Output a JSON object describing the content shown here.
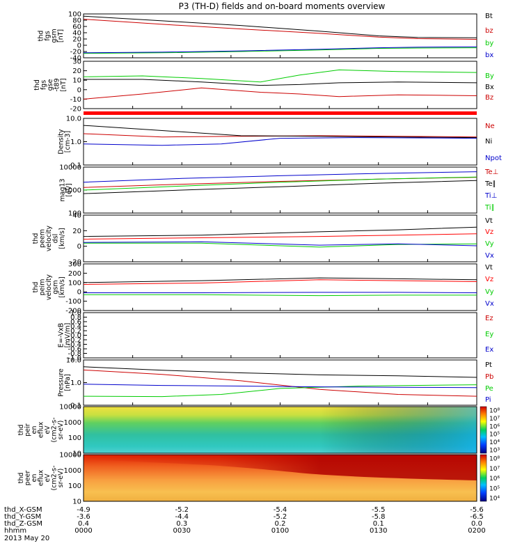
{
  "title": "P3 (TH-D) fields and on-board moments overview",
  "date_label": "2013 May 20",
  "axis_rows": [
    {
      "label": "thd_X-GSM",
      "values": [
        "-4.9",
        "-5.2",
        "-5.4",
        "-5.5",
        "-5.6"
      ]
    },
    {
      "label": "thd_Y-GSM",
      "values": [
        "-3.6",
        "-4.4",
        "-5.2",
        "-5.8",
        "-6.5"
      ]
    },
    {
      "label": "thd_Z-GSM",
      "values": [
        "0.4",
        "0.3",
        "0.2",
        "0.1",
        "0.0"
      ]
    },
    {
      "label": "hhmm",
      "values": [
        "0000",
        "0030",
        "0100",
        "0130",
        "0200"
      ]
    }
  ],
  "chart_data": [
    {
      "type": "line",
      "ylabel": [
        "thd",
        "fgs",
        "gsm",
        "[nT]"
      ],
      "ylim": [
        -40,
        100
      ],
      "yticks": [
        "100",
        "80",
        "60",
        "40",
        "20",
        "0",
        "-20",
        "-40"
      ],
      "series": [
        {
          "name": "Bt",
          "color": "#000000",
          "x": [
            0,
            0.2,
            0.4,
            0.6,
            0.75,
            0.85,
            1
          ],
          "y": [
            93,
            78,
            63,
            45,
            30,
            25,
            24
          ]
        },
        {
          "name": "bz",
          "color": "#cc0000",
          "x": [
            0,
            0.2,
            0.4,
            0.6,
            0.75,
            0.85,
            1
          ],
          "y": [
            83,
            67,
            52,
            38,
            26,
            21,
            19
          ]
        },
        {
          "name": "by",
          "color": "#00cc00",
          "x": [
            0,
            0.2,
            0.4,
            0.6,
            0.75,
            0.85,
            1
          ],
          "y": [
            -26,
            -24,
            -20,
            -15,
            -10,
            -9,
            -8
          ]
        },
        {
          "name": "bx",
          "color": "#0000cc",
          "x": [
            0,
            0.2,
            0.4,
            0.6,
            0.75,
            0.85,
            1
          ],
          "y": [
            -24,
            -22,
            -18,
            -13,
            -8,
            -6,
            -5
          ]
        }
      ]
    },
    {
      "type": "line",
      "ylabel": [
        "thd",
        "fgs",
        "gse",
        "-t89",
        "[nT]"
      ],
      "ylim": [
        -25,
        30
      ],
      "yticks": [
        "30",
        "20",
        "10",
        "0",
        "-10",
        "-20"
      ],
      "series": [
        {
          "name": "By",
          "color": "#00cc00",
          "x": [
            0,
            0.15,
            0.3,
            0.45,
            0.55,
            0.65,
            0.8,
            1
          ],
          "y": [
            12,
            13,
            10,
            6,
            14,
            20,
            18,
            17
          ]
        },
        {
          "name": "Bx",
          "color": "#000000",
          "x": [
            0,
            0.15,
            0.3,
            0.45,
            0.55,
            0.65,
            0.8,
            1
          ],
          "y": [
            9,
            9,
            6,
            2,
            3,
            5,
            6,
            5
          ]
        },
        {
          "name": "Bz",
          "color": "#cc0000",
          "x": [
            0,
            0.15,
            0.3,
            0.45,
            0.55,
            0.65,
            0.8,
            1
          ],
          "y": [
            -14,
            -8,
            -1,
            -6,
            -8,
            -11,
            -9,
            -10
          ]
        }
      ]
    },
    {
      "type": "line",
      "ylabel": [
        "Density",
        "[cm-3]"
      ],
      "ylim": [
        0.1,
        10
      ],
      "yscale": "log",
      "yticks": [
        "10.0",
        "1.0",
        "0.1"
      ],
      "series": [
        {
          "name": "Ne",
          "color": "#cc0000",
          "x": [
            0,
            0.2,
            0.4,
            0.6,
            0.8,
            1
          ],
          "y": [
            2.2,
            1.6,
            1.7,
            1.8,
            1.7,
            1.6
          ]
        },
        {
          "name": "Ni",
          "color": "#000000",
          "x": [
            0,
            0.2,
            0.4,
            0.6,
            0.8,
            1
          ],
          "y": [
            5.0,
            3.0,
            1.8,
            1.7,
            1.6,
            1.5
          ]
        },
        {
          "name": "Npot",
          "color": "#0000cc",
          "x": [
            0,
            0.2,
            0.35,
            0.5,
            0.7,
            1
          ],
          "y": [
            0.8,
            0.7,
            0.8,
            1.4,
            1.5,
            1.4
          ]
        }
      ]
    },
    {
      "type": "line",
      "ylabel": [
        "mag13",
        "[eV]"
      ],
      "ylim": [
        100,
        10000
      ],
      "yscale": "log",
      "yticks": [
        "10000",
        "1000",
        "100"
      ],
      "series": [
        {
          "name": "Te⊥",
          "color": "#cc0000",
          "x": [
            0,
            0.25,
            0.5,
            0.75,
            1
          ],
          "y": [
            1300,
            1800,
            2400,
            3000,
            3600
          ]
        },
        {
          "name": "Te∥",
          "color": "#000000",
          "x": [
            0,
            0.25,
            0.5,
            0.75,
            1
          ],
          "y": [
            700,
            1000,
            1400,
            2000,
            2600
          ]
        },
        {
          "name": "Ti⊥",
          "color": "#0000cc",
          "x": [
            0,
            0.25,
            0.5,
            0.75,
            1
          ],
          "y": [
            2200,
            3200,
            4200,
            5300,
            6300
          ]
        },
        {
          "name": "Ti∥",
          "color": "#00cc00",
          "x": [
            0,
            0.25,
            0.5,
            0.75,
            1
          ],
          "y": [
            1000,
            1500,
            2200,
            3000,
            3700
          ]
        }
      ]
    },
    {
      "type": "line",
      "ylabel": [
        "thd",
        "peem",
        "velocity",
        "dsl",
        "[km/s]"
      ],
      "ylim": [
        -30,
        40
      ],
      "yticks": [
        "40",
        "20",
        "0",
        "-20"
      ],
      "series": [
        {
          "name": "Vt",
          "color": "#000000",
          "x": [
            0,
            0.3,
            0.6,
            0.8,
            1
          ],
          "y": [
            8,
            10,
            15,
            18,
            22
          ]
        },
        {
          "name": "Vz",
          "color": "#ff0000",
          "x": [
            0,
            0.3,
            0.6,
            0.8,
            1
          ],
          "y": [
            4,
            6,
            8,
            10,
            12
          ]
        },
        {
          "name": "Vy",
          "color": "#00cc00",
          "x": [
            0,
            0.3,
            0.6,
            0.8,
            1
          ],
          "y": [
            -2,
            -2,
            -8,
            -4,
            -3
          ]
        },
        {
          "name": "Vx",
          "color": "#0000cc",
          "x": [
            0,
            0.3,
            0.6,
            0.8,
            1
          ],
          "y": [
            -1,
            0,
            -5,
            -3,
            -6
          ]
        }
      ]
    },
    {
      "type": "line",
      "ylabel": [
        "thd",
        "peim",
        "velocity",
        "gsm",
        "[km/s]"
      ],
      "ylim": [
        -200,
        300
      ],
      "yticks": [
        "300",
        "200",
        "100",
        "0",
        "-100",
        "-200"
      ],
      "series": [
        {
          "name": "Vt",
          "color": "#000000",
          "x": [
            0,
            0.3,
            0.6,
            0.8,
            1
          ],
          "y": [
            100,
            120,
            150,
            140,
            130
          ]
        },
        {
          "name": "Vz",
          "color": "#ff0000",
          "x": [
            0,
            0.3,
            0.6,
            0.8,
            1
          ],
          "y": [
            80,
            95,
            130,
            120,
            110
          ]
        },
        {
          "name": "Vy",
          "color": "#00cc00",
          "x": [
            0,
            0.3,
            0.6,
            0.8,
            1
          ],
          "y": [
            -30,
            -30,
            -40,
            -35,
            -35
          ]
        },
        {
          "name": "Vx",
          "color": "#0000cc",
          "x": [
            0,
            0.3,
            0.6,
            0.8,
            1
          ],
          "y": [
            -10,
            -10,
            -5,
            -5,
            -10
          ]
        }
      ]
    },
    {
      "type": "line",
      "ylabel": [
        "E=-VxB",
        "[mV/m]"
      ],
      "ylim": [
        -1,
        1
      ],
      "yticks": [
        "1.0",
        "0.8",
        "0.6",
        "0.4",
        "0.2",
        "0.0",
        "-0.2",
        "-0.4",
        "-0.6",
        "-0.8",
        "-1.0"
      ],
      "series": [
        {
          "name": "Ez",
          "color": "#cc0000",
          "x": [],
          "y": []
        },
        {
          "name": "Ey",
          "color": "#00cc00",
          "x": [],
          "y": []
        },
        {
          "name": "Ex",
          "color": "#0000cc",
          "x": [],
          "y": []
        }
      ]
    },
    {
      "type": "line",
      "ylabel": [
        "Pressure",
        "[nPa]"
      ],
      "ylim": [
        0.1,
        10
      ],
      "yscale": "log",
      "yticks": [
        "10.0",
        "1.0",
        "0.1"
      ],
      "series": [
        {
          "name": "Pt",
          "color": "#000000",
          "x": [
            0,
            0.2,
            0.4,
            0.6,
            0.8,
            1
          ],
          "y": [
            5.0,
            3.5,
            2.7,
            2.2,
            2.0,
            1.7
          ]
        },
        {
          "name": "Pb",
          "color": "#cc0000",
          "x": [
            0,
            0.2,
            0.4,
            0.6,
            0.8,
            1
          ],
          "y": [
            3.6,
            2.3,
            1.2,
            0.5,
            0.3,
            0.25
          ]
        },
        {
          "name": "Pe",
          "color": "#00cc00",
          "x": [
            0,
            0.2,
            0.35,
            0.5,
            0.7,
            1
          ],
          "y": [
            0.25,
            0.24,
            0.3,
            0.55,
            0.7,
            0.8
          ]
        },
        {
          "name": "Pi",
          "color": "#0000cc",
          "x": [
            0,
            0.2,
            0.4,
            0.6,
            0.8,
            1
          ],
          "y": [
            0.85,
            0.75,
            0.7,
            0.65,
            0.62,
            0.6
          ]
        }
      ]
    },
    {
      "type": "heatmap",
      "ylabel": [
        "thd",
        "peir",
        "en",
        "eflux",
        "eV",
        "(cm2-s-",
        "sr-eV)"
      ],
      "yscale": "log",
      "yticks": [
        "10000",
        "1000",
        "100",
        "10"
      ],
      "colorbar_ticks": [
        "10⁸",
        "10⁷",
        "10⁶",
        "10⁵",
        "10⁴",
        "10³"
      ]
    },
    {
      "type": "heatmap",
      "ylabel": [
        "thd",
        "peer",
        "en",
        "eflux",
        "eV",
        "(cm2-s-",
        "sr-eV)"
      ],
      "yscale": "log",
      "yticks": [
        "10000",
        "1000",
        "100",
        "10"
      ],
      "colorbar_ticks": [
        "10⁸",
        "10⁷",
        "10⁶",
        "10⁵",
        "10⁴"
      ]
    }
  ]
}
